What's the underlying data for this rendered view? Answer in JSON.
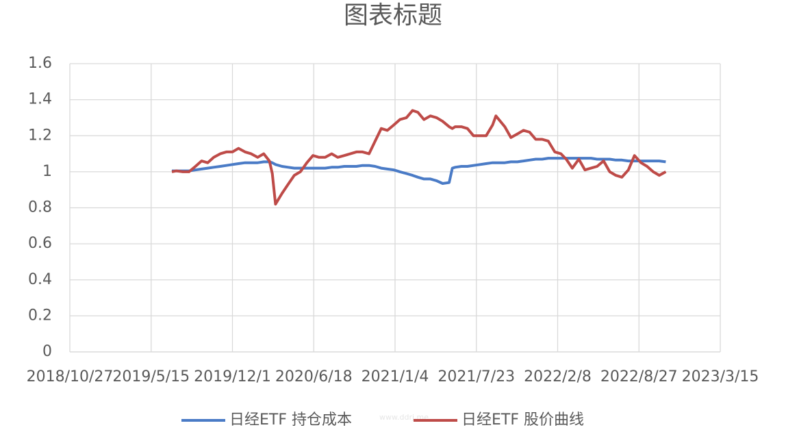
{
  "chart_data": {
    "type": "line",
    "title": "图表标题",
    "x": [
      "2019/7/5",
      "2019/7/16",
      "2019/8/1",
      "2019/8/16",
      "2019/9/1",
      "2019/9/16",
      "2019/10/1",
      "2019/10/16",
      "2019/11/1",
      "2019/11/16",
      "2019/12/1",
      "2019/12/16",
      "2020/1/1",
      "2020/1/16",
      "2020/2/1",
      "2020/2/16",
      "2020/3/1",
      "2020/3/8",
      "2020/3/16",
      "2020/4/1",
      "2020/4/16",
      "2020/5/1",
      "2020/5/16",
      "2020/6/1",
      "2020/6/16",
      "2020/7/1",
      "2020/7/16",
      "2020/8/1",
      "2020/8/16",
      "2020/9/1",
      "2020/9/16",
      "2020/10/1",
      "2020/10/16",
      "2020/11/1",
      "2020/11/16",
      "2020/12/1",
      "2020/12/16",
      "2021/1/1",
      "2021/1/16",
      "2021/2/1",
      "2021/2/16",
      "2021/3/1",
      "2021/3/16",
      "2021/4/1",
      "2021/4/16",
      "2021/5/1",
      "2021/5/17",
      "2021/5/25",
      "2021/6/1",
      "2021/6/16",
      "2021/7/1",
      "2021/7/16",
      "2021/8/1",
      "2021/8/16",
      "2021/9/1",
      "2021/9/9",
      "2021/10/1",
      "2021/10/16",
      "2021/11/1",
      "2021/11/16",
      "2021/12/1",
      "2021/12/16",
      "2022/1/1",
      "2022/1/16",
      "2022/2/1",
      "2022/2/16",
      "2022/3/1",
      "2022/3/16",
      "2022/4/1",
      "2022/4/16",
      "2022/5/1",
      "2022/5/16",
      "2022/6/1",
      "2022/6/16",
      "2022/7/1",
      "2022/7/16",
      "2022/8/1",
      "2022/8/16",
      "2022/9/1",
      "2022/9/16",
      "2022/10/1",
      "2022/10/16",
      "2022/11/1"
    ],
    "series": [
      {
        "name": "日经ETF 持仓成本",
        "color": "#4a7bc6",
        "values": [
          1.005,
          1.005,
          1.005,
          1.005,
          1.01,
          1.015,
          1.02,
          1.025,
          1.03,
          1.035,
          1.04,
          1.045,
          1.05,
          1.05,
          1.05,
          1.055,
          1.055,
          1.05,
          1.04,
          1.03,
          1.025,
          1.02,
          1.02,
          1.02,
          1.02,
          1.02,
          1.02,
          1.025,
          1.025,
          1.03,
          1.03,
          1.03,
          1.035,
          1.035,
          1.03,
          1.02,
          1.015,
          1.01,
          1.0,
          0.99,
          0.98,
          0.97,
          0.96,
          0.96,
          0.95,
          0.935,
          0.94,
          1.02,
          1.025,
          1.03,
          1.03,
          1.035,
          1.04,
          1.045,
          1.05,
          1.05,
          1.05,
          1.055,
          1.055,
          1.06,
          1.065,
          1.07,
          1.07,
          1.075,
          1.075,
          1.075,
          1.075,
          1.075,
          1.075,
          1.075,
          1.075,
          1.07,
          1.07,
          1.07,
          1.065,
          1.065,
          1.06,
          1.06,
          1.06,
          1.06,
          1.06,
          1.06,
          1.055
        ]
      },
      {
        "name": "日经ETF 股价曲线",
        "color": "#be4b48",
        "values": [
          1.0,
          1.005,
          1.0,
          1.0,
          1.03,
          1.06,
          1.05,
          1.08,
          1.1,
          1.11,
          1.11,
          1.13,
          1.11,
          1.1,
          1.08,
          1.1,
          1.06,
          0.99,
          0.82,
          0.88,
          0.93,
          0.98,
          1.0,
          1.05,
          1.09,
          1.08,
          1.08,
          1.1,
          1.08,
          1.09,
          1.1,
          1.11,
          1.11,
          1.1,
          1.17,
          1.24,
          1.23,
          1.26,
          1.29,
          1.3,
          1.34,
          1.33,
          1.29,
          1.31,
          1.3,
          1.28,
          1.25,
          1.24,
          1.25,
          1.25,
          1.24,
          1.2,
          1.2,
          1.2,
          1.26,
          1.31,
          1.25,
          1.19,
          1.21,
          1.23,
          1.22,
          1.18,
          1.18,
          1.17,
          1.11,
          1.1,
          1.07,
          1.02,
          1.07,
          1.01,
          1.02,
          1.03,
          1.06,
          1.0,
          0.98,
          0.97,
          1.01,
          1.09,
          1.05,
          1.03,
          1.0,
          0.98,
          1.0
        ]
      }
    ],
    "xlim": [
      "2018/10/27",
      "2023/3/15"
    ],
    "xticks": [
      "2018/10/27",
      "2019/5/15",
      "2019/12/1",
      "2020/6/18",
      "2021/1/4",
      "2021/7/23",
      "2022/2/8",
      "2022/8/27",
      "2023/3/15"
    ],
    "ylim": [
      0,
      1.6
    ],
    "yticks": [
      0,
      {
        "value": 0.2,
        "label": "0.2"
      },
      {
        "value": 0.4,
        "label": "0.4"
      },
      {
        "value": 0.6,
        "label": "0.6"
      },
      {
        "value": 0.8,
        "label": "0.8"
      },
      1,
      {
        "value": 1.2,
        "label": "1.2"
      },
      {
        "value": 1.4,
        "label": "1.4"
      },
      {
        "value": 1.6,
        "label": "1.6"
      }
    ],
    "grid": true,
    "legend": "bottom",
    "watermark": "www.ddrj.me"
  }
}
